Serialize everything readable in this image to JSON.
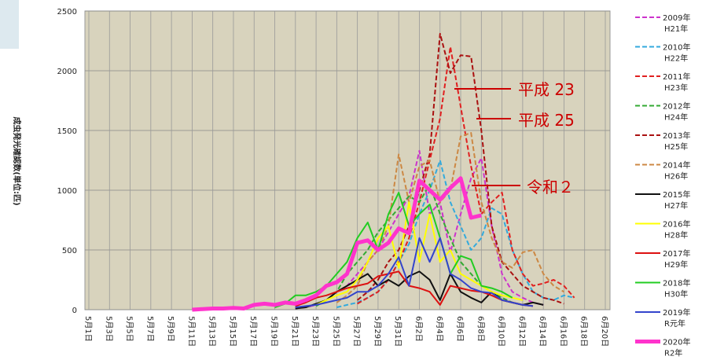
{
  "chart_data": {
    "type": "line",
    "y_label": "成虫発光確認数(単位:匹)",
    "categories": [
      "5月1日",
      null,
      "5月3日",
      null,
      "5月5日",
      null,
      "5月7日",
      null,
      "5月9日",
      null,
      "5月11日",
      null,
      "5月13日",
      null,
      "5月15日",
      null,
      "5月17日",
      null,
      "5月19日",
      null,
      "5月21日",
      null,
      "5月23日",
      null,
      "5月25日",
      null,
      "5月27日",
      null,
      "5月29日",
      null,
      "5月31日",
      null,
      "6月2日",
      null,
      "6月4日",
      null,
      "6月6日",
      null,
      "6月8日",
      null,
      "6月10日",
      null,
      "6月12日",
      null,
      "6月14日",
      null,
      "6月16日",
      null,
      "6月18日",
      null,
      "6月20日"
    ],
    "ylim": [
      0,
      2500
    ],
    "yticks": [
      0,
      500,
      1000,
      1500,
      2000,
      2500
    ],
    "grid": true,
    "series": [
      {
        "name": "2009年",
        "era": "H21年",
        "color": "#cc33cc",
        "dashed": true,
        "values": [
          null,
          null,
          null,
          null,
          null,
          null,
          null,
          null,
          null,
          null,
          null,
          null,
          null,
          null,
          null,
          null,
          null,
          null,
          null,
          null,
          10,
          20,
          40,
          80,
          150,
          200,
          300,
          400,
          500,
          650,
          800,
          950,
          1330,
          800,
          900,
          480,
          800,
          1100,
          1270,
          700,
          300,
          150,
          100,
          60,
          40,
          null,
          null,
          null,
          null,
          null,
          null
        ]
      },
      {
        "name": "2010年",
        "era": "H22年",
        "color": "#33aadd",
        "dashed": true,
        "values": [
          null,
          null,
          null,
          null,
          null,
          null,
          null,
          null,
          null,
          null,
          null,
          null,
          null,
          null,
          null,
          null,
          null,
          null,
          null,
          null,
          null,
          null,
          null,
          null,
          20,
          40,
          60,
          100,
          150,
          250,
          400,
          550,
          800,
          1000,
          1250,
          900,
          700,
          500,
          600,
          850,
          800,
          500,
          300,
          150,
          100,
          80,
          120,
          100,
          null,
          null,
          null
        ]
      },
      {
        "name": "2011年",
        "era": "H23年",
        "color": "#e02020",
        "dashed": true,
        "values": [
          null,
          null,
          null,
          null,
          null,
          null,
          null,
          null,
          null,
          null,
          null,
          null,
          null,
          null,
          null,
          null,
          null,
          null,
          null,
          null,
          null,
          null,
          null,
          null,
          null,
          null,
          50,
          100,
          150,
          250,
          400,
          600,
          900,
          1250,
          1600,
          2200,
          1700,
          1200,
          800,
          900,
          980,
          500,
          300,
          200,
          220,
          250,
          200,
          100,
          null,
          null,
          null
        ]
      },
      {
        "name": "2012年",
        "era": "H24年",
        "color": "#33aa33",
        "dashed": true,
        "values": [
          null,
          null,
          null,
          null,
          null,
          null,
          null,
          null,
          null,
          null,
          null,
          null,
          null,
          null,
          null,
          null,
          null,
          null,
          null,
          null,
          null,
          null,
          30,
          80,
          150,
          300,
          400,
          500,
          650,
          750,
          850,
          950,
          900,
          1050,
          800,
          600,
          400,
          300,
          200,
          150,
          100,
          60,
          40,
          null,
          null,
          null,
          null,
          null,
          null,
          null,
          null
        ]
      },
      {
        "name": "2013年",
        "era": "H25年",
        "color": "#aa1111",
        "dashed": true,
        "values": [
          null,
          null,
          null,
          null,
          null,
          null,
          null,
          null,
          null,
          null,
          null,
          null,
          null,
          null,
          null,
          null,
          null,
          null,
          null,
          null,
          null,
          null,
          null,
          null,
          null,
          null,
          80,
          150,
          250,
          400,
          500,
          700,
          1000,
          1300,
          2310,
          1980,
          2130,
          2120,
          1500,
          700,
          400,
          300,
          200,
          150,
          100,
          80,
          50,
          null,
          null,
          null,
          null
        ]
      },
      {
        "name": "2014年",
        "era": "H26年",
        "color": "#cc8844",
        "dashed": true,
        "values": [
          null,
          null,
          null,
          null,
          null,
          null,
          null,
          null,
          null,
          null,
          null,
          null,
          null,
          null,
          null,
          null,
          null,
          null,
          null,
          null,
          null,
          null,
          null,
          null,
          60,
          120,
          200,
          400,
          500,
          700,
          1300,
          900,
          1200,
          1250,
          900,
          1000,
          1450,
          1480,
          900,
          600,
          400,
          350,
          480,
          500,
          300,
          200,
          150,
          null,
          null,
          null,
          null
        ]
      },
      {
        "name": "2015年",
        "era": "H27年",
        "color": "#111111",
        "dashed": false,
        "values": [
          null,
          null,
          null,
          null,
          null,
          null,
          null,
          null,
          null,
          null,
          null,
          null,
          null,
          null,
          null,
          null,
          null,
          null,
          null,
          null,
          10,
          20,
          50,
          80,
          150,
          200,
          250,
          300,
          200,
          250,
          200,
          280,
          320,
          250,
          80,
          300,
          150,
          100,
          60,
          150,
          80,
          60,
          40,
          60,
          40,
          null,
          null,
          null,
          null,
          null,
          null
        ]
      },
      {
        "name": "2016年",
        "era": "H28年",
        "color": "#ffff00",
        "dashed": false,
        "values": [
          null,
          null,
          null,
          null,
          null,
          null,
          null,
          null,
          null,
          null,
          null,
          null,
          null,
          null,
          null,
          null,
          null,
          null,
          null,
          null,
          null,
          null,
          40,
          80,
          120,
          150,
          250,
          400,
          600,
          700,
          350,
          900,
          400,
          800,
          400,
          500,
          300,
          250,
          200,
          150,
          120,
          100,
          80,
          null,
          null,
          null,
          null,
          null,
          null,
          null,
          null
        ]
      },
      {
        "name": "2017年",
        "era": "H29年",
        "color": "#dd1111",
        "dashed": false,
        "values": [
          null,
          null,
          null,
          null,
          null,
          null,
          null,
          null,
          null,
          null,
          null,
          null,
          null,
          null,
          null,
          null,
          null,
          null,
          null,
          null,
          30,
          60,
          100,
          120,
          150,
          180,
          200,
          220,
          280,
          300,
          320,
          200,
          180,
          150,
          40,
          200,
          180,
          160,
          150,
          120,
          80,
          60,
          40,
          30,
          null,
          null,
          null,
          null,
          null,
          null,
          null
        ]
      },
      {
        "name": "2018年",
        "era": "H30年",
        "color": "#22cc22",
        "dashed": false,
        "values": [
          null,
          null,
          null,
          null,
          null,
          null,
          null,
          null,
          null,
          null,
          null,
          null,
          null,
          null,
          null,
          null,
          null,
          null,
          20,
          50,
          120,
          120,
          150,
          200,
          300,
          400,
          600,
          730,
          500,
          800,
          980,
          700,
          800,
          880,
          600,
          300,
          450,
          420,
          200,
          180,
          150,
          100,
          null,
          null,
          null,
          null,
          null,
          null,
          null,
          null,
          null
        ]
      },
      {
        "name": "2019年",
        "era": "R元年",
        "color": "#3344cc",
        "dashed": false,
        "values": [
          null,
          null,
          null,
          null,
          null,
          null,
          null,
          null,
          null,
          null,
          null,
          null,
          null,
          null,
          null,
          null,
          null,
          null,
          null,
          null,
          20,
          30,
          40,
          60,
          80,
          100,
          150,
          150,
          200,
          300,
          440,
          200,
          600,
          400,
          600,
          300,
          250,
          180,
          150,
          140,
          80,
          60,
          40,
          30,
          null,
          null,
          null,
          null,
          null,
          null,
          null
        ]
      },
      {
        "name": "2020年",
        "era": "R2年",
        "color": "#ff33cc",
        "dashed": false,
        "thick": true,
        "values": [
          null,
          null,
          null,
          null,
          null,
          null,
          null,
          null,
          null,
          null,
          0,
          5,
          10,
          10,
          15,
          10,
          40,
          50,
          40,
          60,
          50,
          80,
          120,
          200,
          230,
          300,
          560,
          580,
          500,
          560,
          680,
          640,
          1080,
          1000,
          920,
          1020,
          1100,
          770,
          790,
          null,
          null,
          null,
          null,
          null,
          null,
          null,
          null,
          null,
          null,
          null,
          null
        ]
      }
    ],
    "annotations": [
      {
        "text": "平成 23"
      },
      {
        "text": "平成 25"
      },
      {
        "text": "令和２"
      }
    ]
  }
}
